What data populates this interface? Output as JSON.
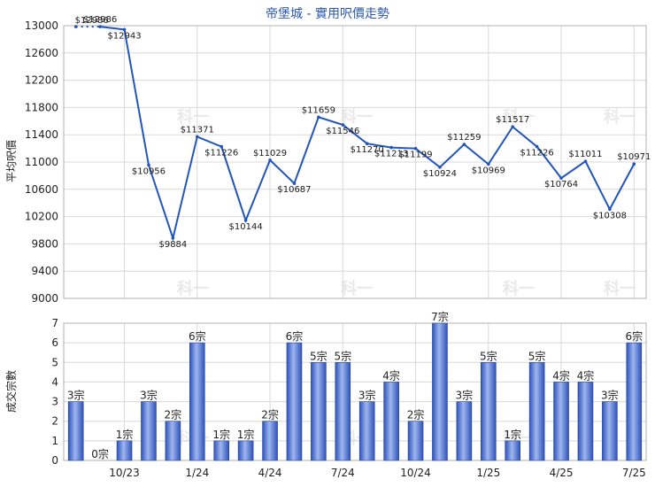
{
  "chart_data": {
    "type": "line+bar",
    "title": "帝堡城 - 實用呎價走勢",
    "price_axis_label": "平均呎價",
    "count_axis_label": "成交宗數",
    "price_ylim": [
      9000,
      13000
    ],
    "price_ticks": [
      9000,
      9400,
      9800,
      10200,
      10600,
      11000,
      11400,
      11800,
      12200,
      12600,
      13000
    ],
    "count_ylim": [
      0,
      7
    ],
    "count_ticks": [
      0,
      1,
      2,
      3,
      4,
      5,
      6,
      7
    ],
    "x_tick_labels": [
      "10/23",
      "1/24",
      "4/24",
      "7/24",
      "10/24",
      "1/25",
      "4/25",
      "7/25"
    ],
    "x_tick_indices": [
      2,
      5,
      8,
      11,
      14,
      17,
      20,
      23
    ],
    "price_start": {
      "value": 12986,
      "label": "$12986"
    },
    "price_series": [
      12986,
      12943,
      10956,
      9884,
      11371,
      11226,
      10144,
      11029,
      10687,
      11659,
      11546,
      11270,
      11213,
      11199,
      10924,
      11259,
      10969,
      11517,
      11226,
      10764,
      11011,
      10308,
      10971
    ],
    "price_labels": [
      "$12986",
      "$12943",
      "$10956",
      "$9884",
      "$11371",
      "$11226",
      "$10144",
      "$11029",
      "$10687",
      "$11659",
      "$11546",
      "$11270",
      "$11213",
      "$11199",
      "$10924",
      "$11259",
      "$10969",
      "$11517",
      "$11226",
      "$10764",
      "$11011",
      "$10308",
      "$10971"
    ],
    "count_series": [
      3,
      0,
      1,
      3,
      2,
      6,
      1,
      1,
      2,
      6,
      5,
      5,
      3,
      4,
      2,
      7,
      3,
      5,
      1,
      5,
      4,
      4,
      3,
      6
    ],
    "count_labels": [
      "3宗",
      "0宗",
      "1宗",
      "3宗",
      "2宗",
      "6宗",
      "1宗",
      "1宗",
      "2宗",
      "6宗",
      "5宗",
      "5宗",
      "3宗",
      "4宗",
      "2宗",
      "7宗",
      "3宗",
      "5宗",
      "1宗",
      "5宗",
      "4宗",
      "4宗",
      "3宗",
      "6宗"
    ],
    "watermark_text": "科一",
    "colors": {
      "line": "#2255bb",
      "bar_dark": "#2e52b8",
      "bar_light": "#9fb6f0",
      "title": "#2b57b0"
    }
  }
}
